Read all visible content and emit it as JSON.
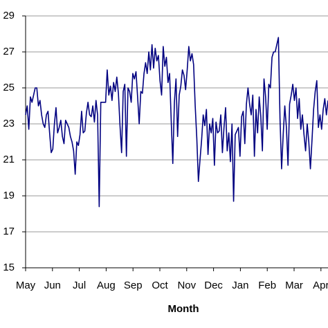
{
  "chart_data": {
    "type": "line",
    "x_axis_label": "Month",
    "x_labels": [
      "May",
      "Jun",
      "Jul",
      "Aug",
      "Sep",
      "Oct",
      "Nov",
      "Dec",
      "Jan",
      "Feb",
      "Mar",
      "Apr"
    ],
    "ylim": [
      15,
      29
    ],
    "yticks": [
      15,
      17,
      19,
      21,
      23,
      25,
      27,
      29
    ],
    "grid": true,
    "series": [
      {
        "color": "#000080",
        "values": [
          23.5,
          24,
          22.7,
          24.5,
          24.2,
          24.6,
          25,
          25,
          24,
          24.3,
          23.5,
          23,
          22.8,
          23.5,
          23.7,
          22.5,
          21.4,
          21.6,
          23,
          23.9,
          22.5,
          22.8,
          23.2,
          22.3,
          21.9,
          23.2,
          23,
          22.8,
          22.3,
          22,
          21.5,
          20.2,
          22,
          21.8,
          22.4,
          23.7,
          22.5,
          22.6,
          23.6,
          24.2,
          23.5,
          23.4,
          24,
          23.1,
          24.3,
          23.5,
          18.4,
          24.2,
          24.2,
          24.2,
          24.2,
          26,
          24.6,
          25.1,
          24.3,
          25.3,
          24.8,
          25.6,
          24.7,
          22.9,
          21.4,
          24.8,
          25.2,
          21.2,
          25,
          24.8,
          24.2,
          25.8,
          25.5,
          25.9,
          24.5,
          23,
          24.8,
          24.7,
          25.8,
          26.4,
          25.8,
          27,
          26,
          27.4,
          26.1,
          27.2,
          26.5,
          26.8,
          25.4,
          24.6,
          27.3,
          26.2,
          26.7,
          25.3,
          25.8,
          23.2,
          20.8,
          24.2,
          25.5,
          22.3,
          24.6,
          25.1,
          26,
          25.7,
          24.9,
          26,
          27.3,
          26.5,
          26.9,
          26.3,
          24,
          22.2,
          19.8,
          21,
          22.1,
          23.5,
          22.9,
          23.8,
          21.3,
          23,
          22.5,
          23.3,
          20.7,
          23.1,
          22.5,
          22.6,
          23.5,
          21.4,
          22.8,
          23.9,
          21.5,
          22.5,
          20.9,
          23,
          18.7,
          22.4,
          22.6,
          22.8,
          21.2,
          23.4,
          23.7,
          21.9,
          24.1,
          25,
          24.1,
          23.5,
          24.6,
          21.2,
          23.8,
          22.5,
          24.5,
          23.4,
          21.5,
          25.5,
          24.5,
          22.7,
          25.2,
          25,
          26.7,
          27,
          27,
          27.4,
          27.8,
          23.3,
          20.5,
          22.4,
          24,
          22.8,
          20.7,
          24.1,
          24.6,
          25.2,
          24.3,
          25,
          23.3,
          24.4,
          22.7,
          23.5,
          22.4,
          21.5,
          23,
          22,
          20.5,
          22.1,
          23.8,
          24.8,
          25.4,
          22.8,
          23.5,
          22.7,
          23.8,
          24.4,
          23.5,
          24.3
        ]
      }
    ]
  }
}
